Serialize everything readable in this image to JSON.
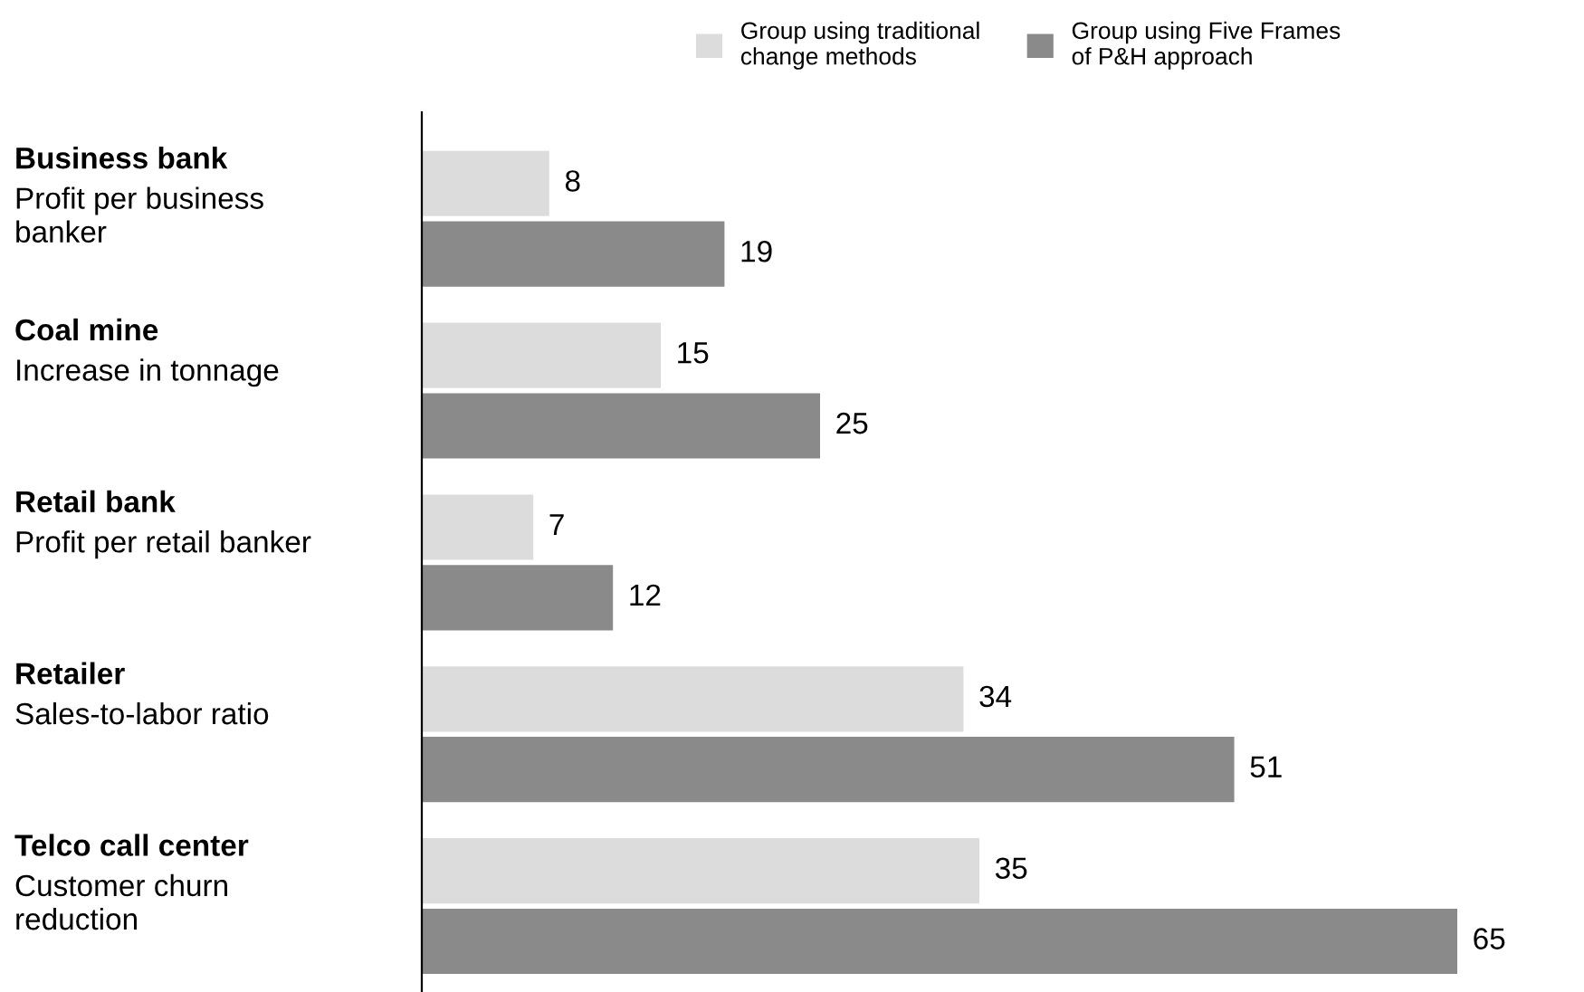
{
  "chart_data": {
    "type": "bar",
    "orientation": "horizontal",
    "categories": [
      "Business bank\nProfit per business\nbanker",
      "Coal mine\nIncrease in tonnage",
      "Retail bank\nProfit per retail banker",
      "Retailer\nSales-to-labor ratio",
      "Telco call center\nCustomer churn\nreduction"
    ],
    "series": [
      {
        "name": "Group using traditional\nchange methods",
        "color": "#dcdcdc",
        "values": [
          8,
          15,
          7,
          34,
          35
        ]
      },
      {
        "name": "Group using Five Frames\nof P&H approach",
        "color": "#8a8a8a",
        "values": [
          19,
          25,
          12,
          51,
          65
        ]
      }
    ],
    "data_labels": true,
    "legend": "top right"
  }
}
